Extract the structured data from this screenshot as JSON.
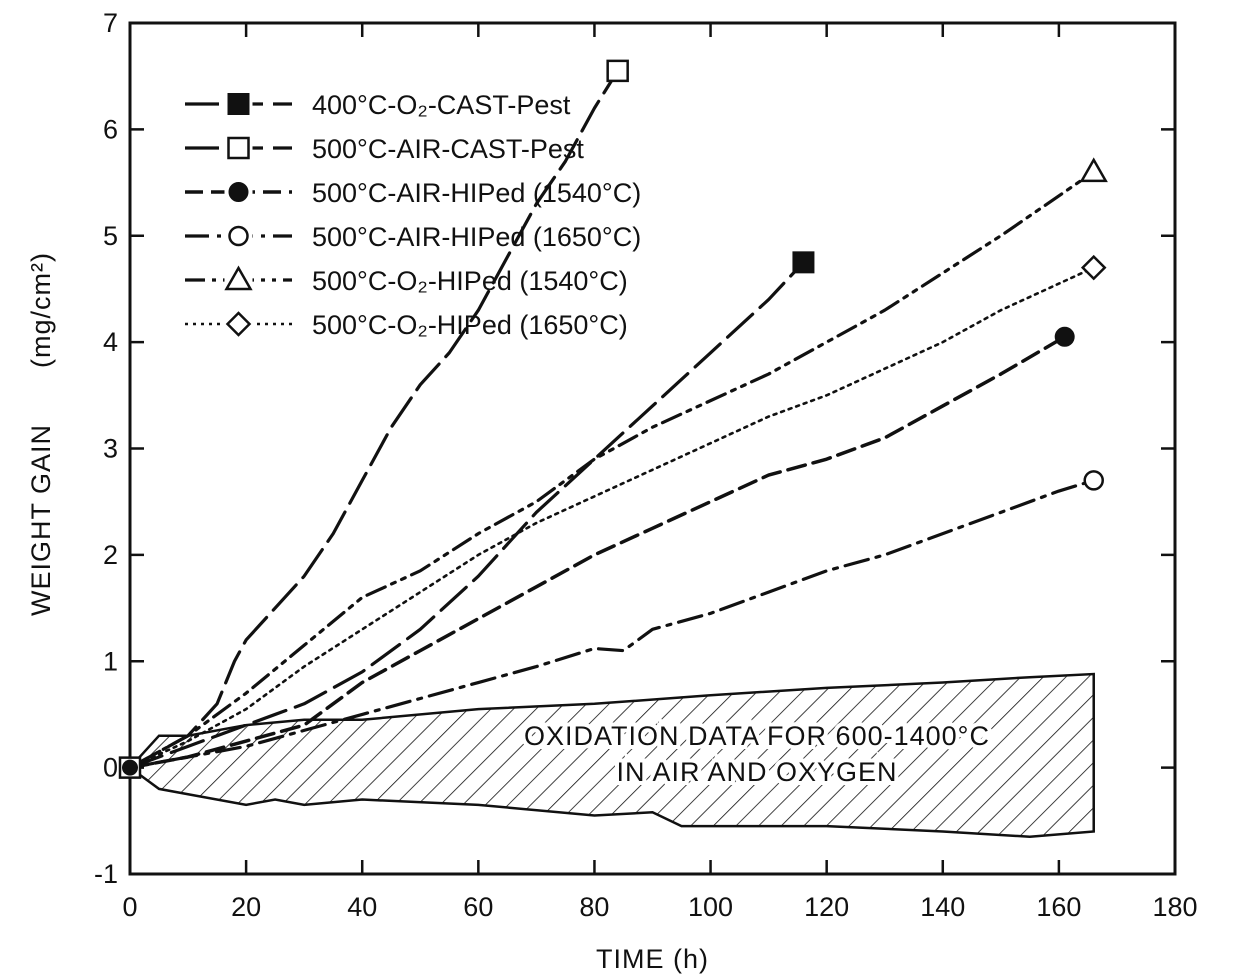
{
  "chart_data": {
    "type": "line",
    "title": "",
    "xlabel": "TIME (h)",
    "ylabel_main": "WEIGHT GAIN",
    "ylabel_unit": "(mg/cm²)",
    "xlim": [
      0,
      180
    ],
    "ylim": [
      -1,
      7
    ],
    "x_ticks": [
      "0",
      "20",
      "40",
      "60",
      "80",
      "100",
      "120",
      "140",
      "160",
      "180"
    ],
    "y_ticks": [
      "-1",
      "0",
      "1",
      "2",
      "3",
      "4",
      "5",
      "6",
      "7"
    ],
    "grid": false,
    "legend_position": "top-left",
    "series": [
      {
        "name": "400°C-O₂-CAST-Pest",
        "marker": "filled-square",
        "style": "long-dash",
        "x": [
          0,
          5,
          10,
          15,
          20,
          25,
          30,
          40,
          50,
          60,
          70,
          80,
          90,
          100,
          110,
          116
        ],
        "y": [
          0,
          0.1,
          0.2,
          0.3,
          0.4,
          0.5,
          0.6,
          0.9,
          1.3,
          1.8,
          2.4,
          2.9,
          3.4,
          3.9,
          4.4,
          4.75
        ]
      },
      {
        "name": "500°C-AIR-CAST-Pest",
        "marker": "open-square",
        "style": "long-dash",
        "x": [
          0,
          10,
          15,
          18,
          20,
          25,
          30,
          35,
          40,
          45,
          50,
          55,
          60,
          65,
          70,
          75,
          80,
          84
        ],
        "y": [
          0,
          0.3,
          0.6,
          1.0,
          1.2,
          1.5,
          1.8,
          2.2,
          2.7,
          3.2,
          3.6,
          3.9,
          4.3,
          4.8,
          5.3,
          5.7,
          6.2,
          6.55
        ]
      },
      {
        "name": "500°C-AIR-HIPed (1540°C)",
        "marker": "filled-circle",
        "style": "dash",
        "x": [
          0,
          10,
          20,
          30,
          40,
          50,
          60,
          70,
          80,
          90,
          100,
          110,
          120,
          130,
          140,
          150,
          161
        ],
        "y": [
          0,
          0.1,
          0.25,
          0.4,
          0.8,
          1.1,
          1.4,
          1.7,
          2.0,
          2.25,
          2.5,
          2.75,
          2.9,
          3.1,
          3.4,
          3.7,
          4.05
        ]
      },
      {
        "name": "500°C-AIR-HIPed (1650°C)",
        "marker": "open-circle",
        "style": "dash-dot",
        "x": [
          0,
          10,
          20,
          30,
          40,
          50,
          60,
          70,
          80,
          85,
          90,
          100,
          110,
          120,
          130,
          140,
          150,
          160,
          166
        ],
        "y": [
          0,
          0.1,
          0.2,
          0.35,
          0.5,
          0.65,
          0.8,
          0.95,
          1.12,
          1.1,
          1.3,
          1.45,
          1.65,
          1.85,
          2.0,
          2.2,
          2.4,
          2.6,
          2.7
        ]
      },
      {
        "name": "500°C-O₂-HIPed (1540°C)",
        "marker": "open-triangle",
        "style": "dash-dot-dot",
        "x": [
          0,
          10,
          20,
          30,
          40,
          50,
          60,
          70,
          80,
          90,
          100,
          110,
          120,
          130,
          140,
          150,
          166
        ],
        "y": [
          0,
          0.3,
          0.7,
          1.15,
          1.6,
          1.85,
          2.2,
          2.5,
          2.9,
          3.2,
          3.45,
          3.7,
          4.0,
          4.3,
          4.65,
          5.0,
          5.6
        ]
      },
      {
        "name": "500°C-O₂-HIPed (1650°C)",
        "marker": "open-diamond",
        "style": "dotted",
        "x": [
          0,
          10,
          20,
          30,
          40,
          50,
          60,
          70,
          80,
          90,
          100,
          110,
          120,
          130,
          140,
          150,
          166
        ],
        "y": [
          0,
          0.25,
          0.55,
          0.95,
          1.3,
          1.65,
          2.0,
          2.3,
          2.55,
          2.8,
          3.05,
          3.3,
          3.5,
          3.75,
          4.0,
          4.3,
          4.7
        ]
      }
    ],
    "band": {
      "label_line1": "OXIDATION DATA FOR 600-1400°C",
      "label_line2": "IN AIR AND OXYGEN",
      "upper": {
        "x": [
          0,
          5,
          10,
          20,
          30,
          40,
          60,
          80,
          100,
          120,
          140,
          155,
          166
        ],
        "y": [
          0,
          0.3,
          0.3,
          0.4,
          0.45,
          0.45,
          0.55,
          0.6,
          0.68,
          0.75,
          0.8,
          0.85,
          0.88
        ]
      },
      "lower": {
        "x": [
          0,
          5,
          10,
          20,
          25,
          30,
          40,
          60,
          80,
          90,
          95,
          100,
          120,
          140,
          155,
          166
        ],
        "y": [
          0,
          -0.2,
          -0.25,
          -0.35,
          -0.3,
          -0.35,
          -0.3,
          -0.35,
          -0.45,
          -0.42,
          -0.55,
          -0.55,
          -0.55,
          -0.6,
          -0.65,
          -0.6
        ]
      }
    }
  },
  "colors": {
    "ink": "#111111",
    "background": "#ffffff"
  }
}
